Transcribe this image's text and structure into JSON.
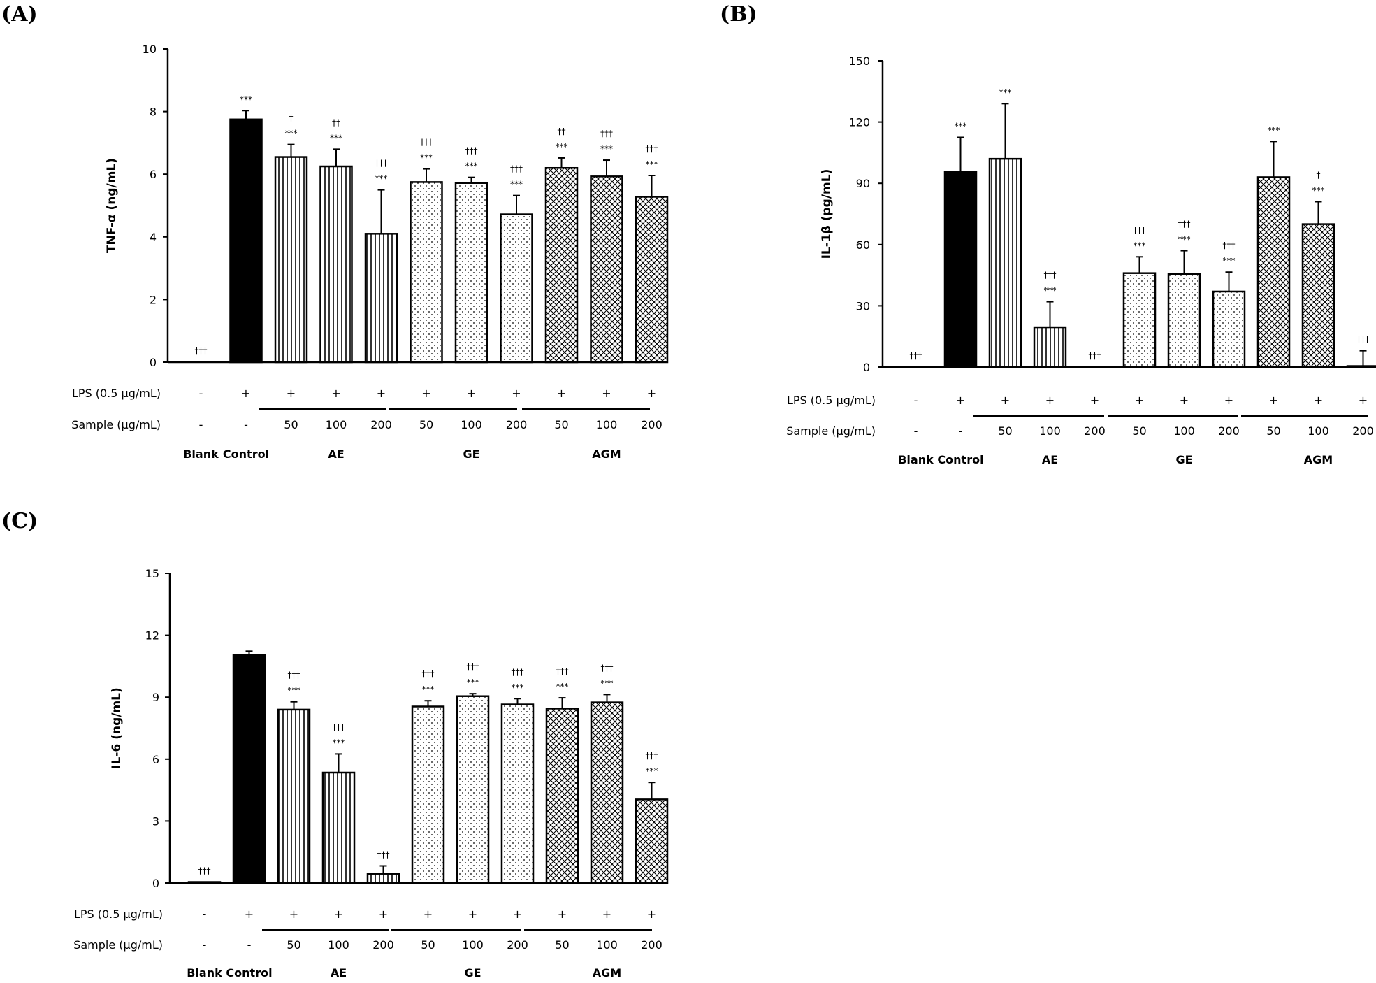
{
  "panels": [
    "(A)",
    "(B)",
    "(C)"
  ],
  "table": {
    "lps_label": "LPS (0.5 μg/mL)",
    "sample_label": "Sample (μg/mL)",
    "lps": [
      "-",
      "+",
      "+",
      "+",
      "+",
      "+",
      "+",
      "+",
      "+",
      "+",
      "+"
    ],
    "sample": [
      "-",
      "-",
      "50",
      "100",
      "200",
      "50",
      "100",
      "200",
      "50",
      "100",
      "200"
    ],
    "groups": [
      "Blank",
      "Control",
      "AE",
      "GE",
      "AGM"
    ]
  },
  "colors": {
    "control": "#000000",
    "bar_outline": "#000000",
    "background": "#ffffff"
  },
  "chart_data": [
    {
      "type": "bar",
      "ylabel": "TNF-α (ng/mL)",
      "ylim": [
        0,
        10
      ],
      "yticks": [
        0,
        2,
        4,
        6,
        8,
        10
      ],
      "categories": [
        "Blank",
        "Control",
        "AE 50",
        "AE 100",
        "AE 200",
        "GE 50",
        "GE 100",
        "GE 200",
        "AGM 50",
        "AGM 100",
        "AGM 200"
      ],
      "values": [
        0,
        7.75,
        6.55,
        6.25,
        4.1,
        5.75,
        5.72,
        4.72,
        6.2,
        5.93,
        5.28
      ],
      "errors": [
        0,
        0.28,
        0.4,
        0.55,
        1.4,
        0.42,
        0.18,
        0.6,
        0.32,
        0.52,
        0.68
      ],
      "sig_dagger": [
        "†††",
        "",
        "†",
        "††",
        "†††",
        "†††",
        "†††",
        "†††",
        "††",
        "†††",
        "†††"
      ],
      "sig_star": [
        "",
        "***",
        "***",
        "***",
        "***",
        "***",
        "***",
        "***",
        "***",
        "***",
        "***"
      ],
      "patterns": [
        "none",
        "solid",
        "vertical",
        "vertical",
        "vertical",
        "dots",
        "dots",
        "dots",
        "crosshatch",
        "crosshatch",
        "crosshatch"
      ]
    },
    {
      "type": "bar",
      "ylabel": "IL-1β (pg/mL)",
      "ylim": [
        0,
        150
      ],
      "yticks": [
        0,
        30,
        60,
        90,
        120,
        150
      ],
      "categories": [
        "Blank",
        "Control",
        "AE 50",
        "AE 100",
        "AE 200",
        "GE 50",
        "GE 100",
        "GE 200",
        "AGM 50",
        "AGM 100",
        "AGM 200"
      ],
      "values": [
        0,
        95.5,
        102,
        19.5,
        0,
        46,
        45.5,
        37,
        93,
        70,
        0.5
      ],
      "errors": [
        0,
        17,
        27,
        12.5,
        0,
        8,
        11.5,
        9.5,
        17.5,
        11,
        7.5
      ],
      "sig_dagger": [
        "†††",
        "",
        "",
        "†††",
        "†††",
        "†††",
        "†††",
        "†††",
        "",
        "†",
        "†††"
      ],
      "sig_star": [
        "",
        "***",
        "***",
        "***",
        "",
        "***",
        "***",
        "***",
        "***",
        "***",
        ""
      ],
      "patterns": [
        "none",
        "solid",
        "vertical",
        "vertical",
        "vertical",
        "dots",
        "dots",
        "dots",
        "crosshatch",
        "crosshatch",
        "crosshatch"
      ]
    },
    {
      "type": "bar",
      "ylabel": "IL-6 (ng/mL)",
      "ylim": [
        0,
        15
      ],
      "yticks": [
        0,
        3,
        6,
        9,
        12,
        15
      ],
      "categories": [
        "Blank",
        "Control",
        "AE 50",
        "AE 100",
        "AE 200",
        "GE 50",
        "GE 100",
        "GE 200",
        "AGM 50",
        "AGM 100",
        "AGM 200"
      ],
      "values": [
        0.05,
        11.05,
        8.4,
        5.35,
        0.45,
        8.55,
        9.05,
        8.65,
        8.45,
        8.75,
        4.05
      ],
      "errors": [
        0,
        0.18,
        0.38,
        0.9,
        0.38,
        0.28,
        0.12,
        0.28,
        0.52,
        0.38,
        0.82
      ],
      "sig_dagger": [
        "†††",
        "",
        "†††",
        "†††",
        "†††",
        "†††",
        "†††",
        "†††",
        "†††",
        "†††",
        "†††"
      ],
      "sig_star": [
        "",
        "",
        "***",
        "***",
        "",
        "***",
        "***",
        "***",
        "***",
        "***",
        "***"
      ],
      "patterns": [
        "none",
        "solid",
        "vertical",
        "vertical",
        "vertical",
        "dots",
        "dots",
        "dots",
        "crosshatch",
        "crosshatch",
        "crosshatch"
      ]
    }
  ]
}
